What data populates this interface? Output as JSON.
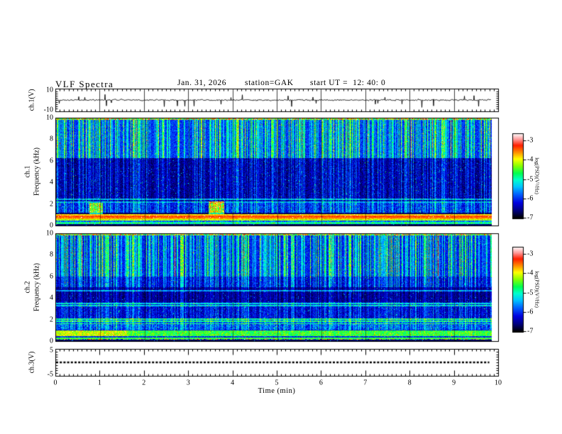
{
  "header": {
    "title": "VLF Spectra",
    "date": "Jan. 31, 2026",
    "station": "station=GAK",
    "start_ut": "start UT =  12: 40: 0"
  },
  "time_axis": {
    "label": "Time (min)",
    "ticks": [
      0,
      1,
      2,
      3,
      4,
      5,
      6,
      7,
      8,
      9,
      10
    ],
    "xlim": [
      0,
      10
    ],
    "data_end_min": 9.84
  },
  "colorbar": {
    "label": "log(PSD)(V²/Hz)",
    "ticks": [
      -3,
      -4,
      -5,
      -6,
      -7
    ]
  },
  "colors": {
    "axis": "#000000",
    "background": "#ffffff",
    "trace": "#000000"
  },
  "colormap": [
    [
      0.0,
      "#000000"
    ],
    [
      0.09,
      "#000080"
    ],
    [
      0.18,
      "#0000e0"
    ],
    [
      0.28,
      "#0060ff"
    ],
    [
      0.37,
      "#00c4ff"
    ],
    [
      0.45,
      "#00ffd0"
    ],
    [
      0.53,
      "#00ff50"
    ],
    [
      0.62,
      "#8cff00"
    ],
    [
      0.7,
      "#ffff00"
    ],
    [
      0.78,
      "#ff8c00"
    ],
    [
      0.86,
      "#ff1e00"
    ],
    [
      0.93,
      "#ff9696"
    ],
    [
      1.0,
      "#ffffff"
    ]
  ],
  "chart_data": [
    {
      "id": "ch1-waveform",
      "type": "line",
      "ylabel": "ch.1(V)",
      "ylim": [
        -10,
        10
      ],
      "yticks": [
        10,
        -10
      ],
      "mean_level": 0,
      "noise_amp": 1.1,
      "down_spike_rate": 0.015,
      "up_spike_rate": 0.009,
      "max_spike": 8,
      "seed": 1337
    },
    {
      "id": "ch1-spectrogram",
      "type": "heatmap",
      "channel": "ch.1",
      "ylabel": "Frequency (kHz)",
      "ylim": [
        0,
        10
      ],
      "yticks": [
        0,
        2,
        4,
        6,
        8,
        10
      ],
      "cb_ticks": [
        -3,
        -4,
        -5,
        -6,
        -7
      ],
      "seed": 91,
      "streak_density": 0.5,
      "hot_streak_rate": 0.05,
      "bands": [
        [
          0.0,
          0.12,
          0.04,
          0.08,
          0.0
        ],
        [
          0.12,
          0.3,
          0.36,
          0.2,
          0.1
        ],
        [
          0.3,
          0.42,
          0.18,
          0.2,
          0.05
        ],
        [
          0.42,
          0.55,
          0.58,
          0.14,
          0.0
        ],
        [
          0.55,
          0.72,
          0.72,
          0.1,
          0.0
        ],
        [
          0.72,
          0.88,
          0.78,
          0.1,
          0.0
        ],
        [
          0.88,
          1.0,
          0.68,
          0.1,
          0.0
        ],
        [
          1.0,
          1.15,
          0.03,
          0.05,
          0.05
        ],
        [
          1.15,
          2.1,
          0.1,
          0.18,
          0.25
        ],
        [
          2.1,
          6.3,
          0.035,
          0.13,
          0.22
        ],
        [
          6.3,
          9.87,
          0.17,
          0.14,
          0.42
        ],
        [
          9.87,
          10.0,
          0.35,
          0.55,
          0.1
        ]
      ],
      "hlines": [
        2.17,
        2.42
      ],
      "blobs": [
        [
          3.45,
          3.8,
          1.05,
          2.2,
          0.4
        ],
        [
          0.75,
          1.05,
          1.0,
          2.1,
          0.35
        ]
      ]
    },
    {
      "id": "ch2-spectrogram",
      "type": "heatmap",
      "channel": "ch.2",
      "ylabel": "Frequency (kHz)",
      "ylim": [
        0,
        10
      ],
      "yticks": [
        0,
        2,
        4,
        6,
        8,
        10
      ],
      "cb_ticks": [
        -3,
        -4,
        -5,
        -6,
        -7
      ],
      "seed": 412,
      "streak_density": 0.52,
      "hot_streak_rate": 0.05,
      "bands": [
        [
          0.0,
          0.13,
          0.03,
          0.06,
          0.0
        ],
        [
          0.13,
          0.2,
          0.1,
          0.85,
          0.0
        ],
        [
          0.2,
          0.3,
          0.5,
          0.12,
          0.0
        ],
        [
          0.3,
          0.45,
          0.14,
          0.15,
          0.05
        ],
        [
          0.45,
          0.95,
          0.46,
          0.17,
          0.05
        ],
        [
          0.95,
          1.05,
          0.1,
          0.12,
          0.1
        ],
        [
          1.05,
          2.1,
          0.13,
          0.2,
          0.2
        ],
        [
          2.1,
          3.6,
          0.07,
          0.15,
          0.18
        ],
        [
          3.6,
          5.0,
          0.035,
          0.1,
          0.14
        ],
        [
          5.0,
          6.0,
          0.08,
          0.14,
          0.28
        ],
        [
          6.0,
          9.87,
          0.15,
          0.13,
          0.4
        ],
        [
          9.87,
          10.0,
          0.35,
          0.55,
          0.1
        ]
      ],
      "hlines": [
        4.72,
        3.52,
        3.3,
        2.05,
        1.82,
        1.6
      ],
      "blobs": [
        [
          0.0,
          1.6,
          0.45,
          0.95,
          0.1
        ]
      ]
    },
    {
      "id": "ch3-line",
      "type": "line",
      "ylabel": "ch.3(V)",
      "ylim": [
        -5,
        5
      ],
      "yticks": [
        5,
        -5
      ],
      "value": 0,
      "line_style": "dashed",
      "data_end_min": 9.8
    }
  ]
}
